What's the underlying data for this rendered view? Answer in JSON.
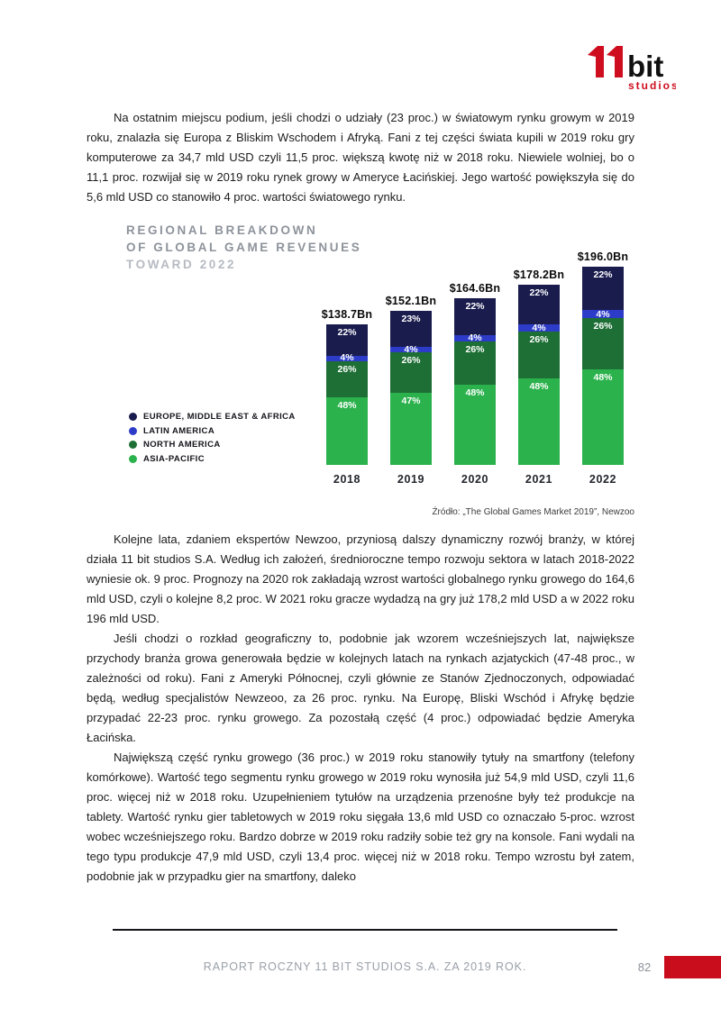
{
  "logo": {
    "mark": "11",
    "bit": "bit",
    "studios": "studios"
  },
  "paragraphs": {
    "p1": "Na ostatnim miejscu podium, jeśli chodzi o udziały (23 proc.) w światowym rynku growym w 2019 roku, znalazła się Europa z Bliskim Wschodem i Afryką. Fani z tej części świata kupili w 2019 roku gry komputerowe za 34,7 mld USD czyli 11,5 proc. większą kwotę niż w 2018 roku. Niewiele wolniej, bo o 11,1 proc. rozwijał się w 2019 roku rynek growy w Ameryce Łacińskiej. Jego wartość powiększyła się do 5,6 mld USD co stanowiło 4 proc. wartości światowego rynku.",
    "p2": "Kolejne lata, zdaniem ekspertów Newzoo, przyniosą dalszy dynamiczny rozwój branży, w której działa 11 bit studios S.A. Według ich założeń, średnioroczne tempo rozwoju sektora w latach 2018-2022 wyniesie ok. 9 proc. Prognozy na 2020 rok zakładają wzrost wartości globalnego rynku growego do 164,6 mld USD, czyli o kolejne 8,2 proc. W 2021 roku gracze wydadzą na gry już 178,2 mld USD a w 2022 roku 196 mld USD.",
    "p3": "Jeśli chodzi o rozkład geograficzny to, podobnie jak wzorem wcześniejszych lat, największe przychody branża growa generowała będzie w kolejnych latach na rynkach azjatyckich (47-48 proc., w zależności od roku). Fani z Ameryki Północnej, czyli głównie ze Stanów Zjednoczonych, odpowiadać będą, według specjalistów Newzeoo, za 26 proc. rynku. Na Europę, Bliski Wschód i Afrykę będzie przypadać 22-23 proc. rynku growego. Za pozostałą część (4 proc.) odpowiadać będzie Ameryka Łacińska.",
    "p4": "Największą część rynku growego (36 proc.) w 2019 roku stanowiły tytuły na smartfony (telefony komórkowe). Wartość tego segmentu rynku growego w 2019 roku wynosiła już 54,9 mld USD, czyli 11,6 proc. więcej niż w 2018 roku. Uzupełnieniem tytułów na urządzenia przenośne były też produkcje na tablety. Wartość rynku gier tabletowych w 2019 roku sięgała 13,6 mld USD co oznaczało 5-proc. wzrost wobec wcześniejszego roku. Bardzo dobrze w 2019 roku radziły sobie też gry na konsole. Fani wydali na tego typu produkcje 47,9 mld USD, czyli 13,4 proc. więcej niż w 2018 roku. Tempo wzrostu był zatem, podobnie jak w przypadku gier na smartfony, daleko"
  },
  "chart_data": {
    "type": "bar",
    "stacked": true,
    "title_lines": [
      "REGIONAL BREAKDOWN",
      "OF GLOBAL GAME REVENUES",
      "TOWARD 2022"
    ],
    "categories": [
      "2018",
      "2019",
      "2020",
      "2021",
      "2022"
    ],
    "totals": [
      "$138.7Bn",
      "$152.1Bn",
      "$164.6Bn",
      "$178.2Bn",
      "$196.0Bn"
    ],
    "totals_bn": [
      138.7,
      152.1,
      164.6,
      178.2,
      196.0
    ],
    "series": [
      {
        "name": "ASIA-PACIFIC",
        "color": "#2bb24c",
        "values": [
          48,
          47,
          48,
          48,
          48
        ]
      },
      {
        "name": "NORTH AMERICA",
        "color": "#1e6f35",
        "values": [
          26,
          26,
          26,
          26,
          26
        ]
      },
      {
        "name": "LATIN AMERICA",
        "color": "#2d3cc8",
        "values": [
          4,
          4,
          4,
          4,
          4
        ]
      },
      {
        "name": "EUROPE, MIDDLE EAST & AFRICA",
        "color": "#1a1c4e",
        "values": [
          22,
          23,
          22,
          22,
          22
        ]
      }
    ],
    "legend_order": [
      "EUROPE, MIDDLE EAST & AFRICA",
      "LATIN AMERICA",
      "NORTH AMERICA",
      "ASIA-PACIFIC"
    ],
    "legend_position": "bottom-left",
    "grid": false,
    "source": "Źródło: „The Global Games Market 2019”, Newzoo"
  },
  "footer": {
    "text": "RAPORT ROCZNY 11 BIT STUDIOS S.A. ZA 2019 ROK.",
    "page_number": "82"
  }
}
